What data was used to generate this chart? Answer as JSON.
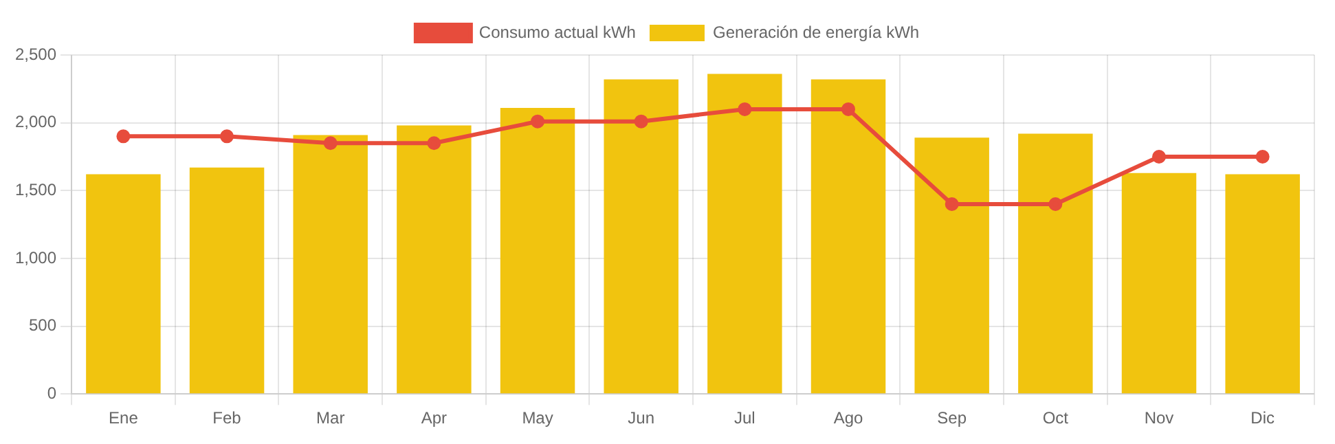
{
  "chart_data": {
    "type": "bar",
    "categories": [
      "Ene",
      "Feb",
      "Mar",
      "Apr",
      "May",
      "Jun",
      "Jul",
      "Ago",
      "Sep",
      "Oct",
      "Nov",
      "Dic"
    ],
    "series": [
      {
        "name": "Consumo actual kWh",
        "type": "line",
        "color": "#e74c3c",
        "values": [
          1900,
          1900,
          1850,
          1850,
          2010,
          2010,
          2100,
          2100,
          1400,
          1400,
          1750,
          1750
        ]
      },
      {
        "name": "Generación de energía kWh",
        "color": "#f1c40f",
        "values": [
          1620,
          1670,
          1910,
          1980,
          2110,
          2320,
          2360,
          2320,
          1890,
          1920,
          1630,
          1620
        ]
      }
    ],
    "ylim": [
      0,
      2500
    ],
    "yticks": [
      0,
      500,
      {
        "value": 1000,
        "label": "1,000"
      },
      {
        "value": 1500,
        "label": "1,500"
      },
      {
        "value": 2000,
        "label": "2,000"
      },
      {
        "value": 2500,
        "label": "2,500"
      }
    ],
    "grid": true,
    "legend": "top",
    "marker": "circle"
  }
}
